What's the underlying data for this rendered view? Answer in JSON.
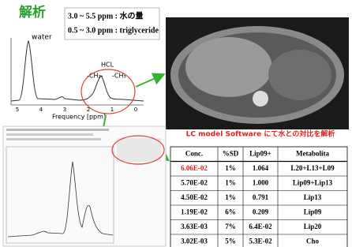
{
  "header": {
    "title": "解析"
  },
  "legend_box": {
    "lines": [
      "3.0 ~ 5.5 ppm : 水の量",
      "0.5 ~ 3.0 ppm : triglyceride"
    ]
  },
  "spectrum": {
    "peak_label": "water",
    "molecule": "HCL",
    "groups": [
      "-CH₂-",
      "-CH₃"
    ],
    "x_label": "Frequency [ppm]",
    "x_ticks": [
      "5",
      "4",
      "3",
      "2",
      "1",
      "0"
    ]
  },
  "subtitle": "LC model Software にて水との対比を解析",
  "table": {
    "headers": [
      "Conc.",
      "%SD",
      "Lip09+",
      "Metabolita"
    ],
    "rows": [
      [
        "6.06E-02",
        "1%",
        "1.064",
        "L20+L13+L09"
      ],
      [
        "5.70E-02",
        "1%",
        "1.000",
        "Lip09+Lip13"
      ],
      [
        "4.50E-02",
        "1%",
        "0.791",
        "Lip13"
      ],
      [
        "1.19E-02",
        "6%",
        "0.209",
        "Lip09"
      ],
      [
        "3.63E-03",
        "7%",
        "6.4E-02",
        "Lip20"
      ],
      [
        "3.02E-03",
        "5%",
        "5.3E-02",
        "Cho"
      ]
    ]
  }
}
